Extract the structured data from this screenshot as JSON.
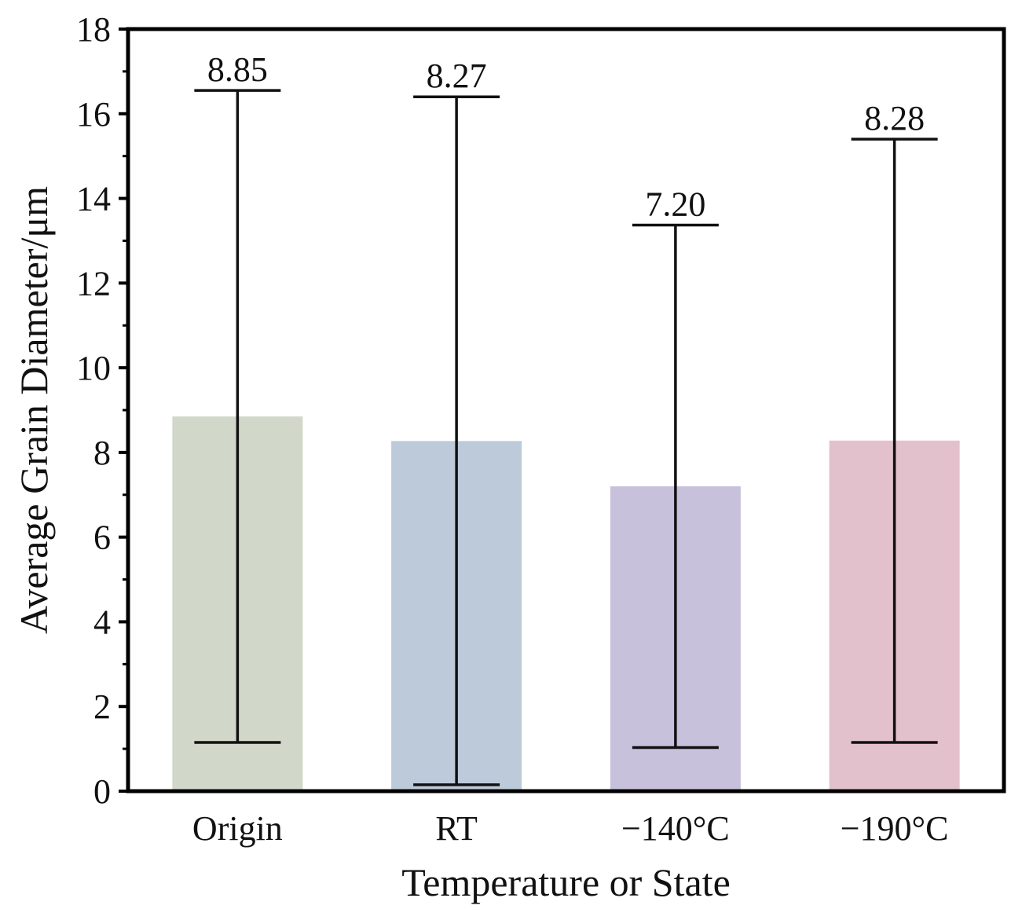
{
  "chart_data": {
    "type": "bar",
    "title": "",
    "xlabel": "Temperature or State",
    "ylabel": "Average Grain Diameter/μm",
    "ylim": [
      0,
      18
    ],
    "yticks": [
      0,
      2,
      4,
      6,
      8,
      10,
      12,
      14,
      16,
      18
    ],
    "categories": [
      "Origin",
      "RT",
      "−140°C",
      "−190°C"
    ],
    "values": [
      8.85,
      8.27,
      7.2,
      8.28
    ],
    "value_labels": [
      "8.85",
      "8.27",
      "7.20",
      "8.28"
    ],
    "error_low": [
      1.15,
      0.15,
      1.03,
      1.15
    ],
    "error_high": [
      16.55,
      16.4,
      13.37,
      15.4
    ],
    "colors": [
      "#d1d7c9",
      "#bccad9",
      "#c8c1dc",
      "#e3c1cc"
    ],
    "grid": false,
    "legend": "none"
  }
}
